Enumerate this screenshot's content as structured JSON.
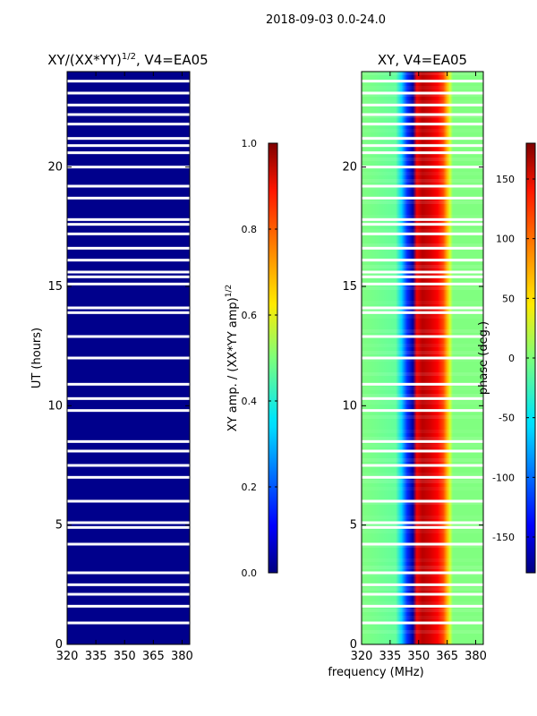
{
  "figure": {
    "suptitle": "2018-09-03 0.0-24.0",
    "xlabel_shared": "frequency (MHz)"
  },
  "chart_data": [
    {
      "type": "heatmap",
      "title": "XY/(XX*YY)",
      "title_exp": "1/2",
      "title_suffix": ", V4=EA05",
      "ylabel": "UT (hours)",
      "xlim": [
        320,
        384
      ],
      "ylim": [
        0,
        24
      ],
      "xticks": [
        "320",
        "335",
        "350",
        "365",
        "380"
      ],
      "yticks": [
        "0",
        "5",
        "10",
        "15",
        "20"
      ],
      "colormap": "jet",
      "description_value": 0.02,
      "colorbar": {
        "label": "XY amp. / (XX*YY amp)",
        "label_exp": "1/2",
        "range": [
          0.0,
          1.0
        ],
        "ticks": [
          "0.0",
          "0.2",
          "0.4",
          "0.6",
          "0.8",
          "1.0"
        ]
      }
    },
    {
      "type": "heatmap",
      "title": "XY, V4=EA05",
      "xlabel": "frequency (MHz)",
      "xlim": [
        320,
        384
      ],
      "ylim": [
        0,
        24
      ],
      "xticks": [
        "320",
        "335",
        "350",
        "365",
        "380"
      ],
      "yticks": [
        "0",
        "5",
        "10",
        "15",
        "20"
      ],
      "colormap": "jet",
      "phase_profile_deg": [
        [
          320,
          0
        ],
        [
          338,
          -10
        ],
        [
          341,
          -60
        ],
        [
          344,
          -120
        ],
        [
          347,
          -170
        ],
        [
          349,
          140
        ],
        [
          352,
          160
        ],
        [
          356,
          150
        ],
        [
          360,
          135
        ],
        [
          363,
          110
        ],
        [
          365,
          70
        ],
        [
          366.5,
          30
        ],
        [
          368,
          0
        ],
        [
          384,
          0
        ]
      ],
      "colorbar": {
        "label": "phase (deg.)",
        "range": [
          -180,
          180
        ],
        "ticks": [
          "-150",
          "-100",
          "-50",
          "0",
          "50",
          "100",
          "150"
        ]
      }
    }
  ],
  "flagged_ut_hours": [
    0.9,
    1.6,
    2.1,
    2.5,
    3.0,
    4.2,
    4.9,
    5.1,
    6.0,
    7.0,
    7.5,
    8.1,
    8.5,
    9.8,
    10.3,
    10.9,
    12.0,
    12.9,
    13.9,
    14.1,
    15.1,
    15.4,
    15.6,
    16.1,
    16.6,
    17.2,
    17.6,
    17.8,
    18.7,
    19.2,
    20.0,
    20.6,
    20.9,
    21.2,
    21.8,
    22.2,
    22.6,
    23.1,
    23.6
  ]
}
